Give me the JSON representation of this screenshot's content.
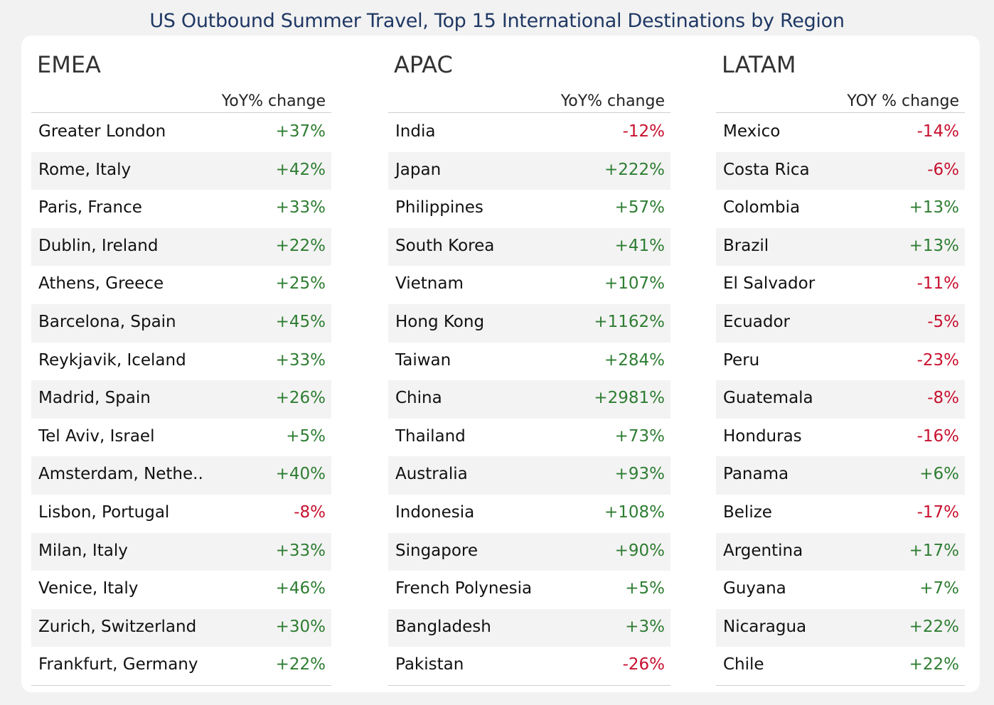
{
  "title": "US Outbound Summer Travel, Top 15 International Destinations by Region",
  "colors": {
    "positive": "#2e7d32",
    "negative": "#c8102e",
    "title": "#1f3864"
  },
  "chart_data": {
    "type": "table",
    "title": "US Outbound Summer Travel, Top 15 International Destinations by Region",
    "tables": [
      {
        "region": "EMEA",
        "column_header": "YoY% change",
        "rows": [
          {
            "name": "Greater London",
            "value": "+37%",
            "change": 37
          },
          {
            "name": "Rome, Italy",
            "value": "+42%",
            "change": 42
          },
          {
            "name": "Paris, France",
            "value": "+33%",
            "change": 33
          },
          {
            "name": "Dublin, Ireland",
            "value": "+22%",
            "change": 22
          },
          {
            "name": "Athens, Greece",
            "value": "+25%",
            "change": 25
          },
          {
            "name": "Barcelona, Spain",
            "value": "+45%",
            "change": 45
          },
          {
            "name": "Reykjavik, Iceland",
            "value": "+33%",
            "change": 33
          },
          {
            "name": "Madrid, Spain",
            "value": "+26%",
            "change": 26
          },
          {
            "name": "Tel Aviv, Israel",
            "value": "+5%",
            "change": 5
          },
          {
            "name": "Amsterdam, Nethe..",
            "value": "+40%",
            "change": 40
          },
          {
            "name": "Lisbon, Portugal",
            "value": "-8%",
            "change": -8
          },
          {
            "name": "Milan, Italy",
            "value": "+33%",
            "change": 33
          },
          {
            "name": "Venice, Italy",
            "value": "+46%",
            "change": 46
          },
          {
            "name": "Zurich, Switzerland",
            "value": "+30%",
            "change": 30
          },
          {
            "name": "Frankfurt, Germany",
            "value": "+22%",
            "change": 22
          }
        ]
      },
      {
        "region": "APAC",
        "column_header": "YoY% change",
        "rows": [
          {
            "name": "India",
            "value": "-12%",
            "change": -12
          },
          {
            "name": "Japan",
            "value": "+222%",
            "change": 222
          },
          {
            "name": "Philippines",
            "value": "+57%",
            "change": 57
          },
          {
            "name": "South Korea",
            "value": "+41%",
            "change": 41
          },
          {
            "name": "Vietnam",
            "value": "+107%",
            "change": 107
          },
          {
            "name": "Hong Kong",
            "value": "+1162%",
            "change": 1162
          },
          {
            "name": "Taiwan",
            "value": "+284%",
            "change": 284
          },
          {
            "name": "China",
            "value": "+2981%",
            "change": 2981
          },
          {
            "name": "Thailand",
            "value": "+73%",
            "change": 73
          },
          {
            "name": "Australia",
            "value": "+93%",
            "change": 93
          },
          {
            "name": "Indonesia",
            "value": "+108%",
            "change": 108
          },
          {
            "name": "Singapore",
            "value": "+90%",
            "change": 90
          },
          {
            "name": "French Polynesia",
            "value": "+5%",
            "change": 5
          },
          {
            "name": "Bangladesh",
            "value": "+3%",
            "change": 3
          },
          {
            "name": "Pakistan",
            "value": "-26%",
            "change": -26
          }
        ]
      },
      {
        "region": "LATAM",
        "column_header": "YOY % change",
        "rows": [
          {
            "name": "Mexico",
            "value": "-14%",
            "change": -14
          },
          {
            "name": "Costa Rica",
            "value": "-6%",
            "change": -6
          },
          {
            "name": "Colombia",
            "value": "+13%",
            "change": 13
          },
          {
            "name": "Brazil",
            "value": "+13%",
            "change": 13
          },
          {
            "name": "El Salvador",
            "value": "-11%",
            "change": -11
          },
          {
            "name": "Ecuador",
            "value": "-5%",
            "change": -5
          },
          {
            "name": "Peru",
            "value": "-23%",
            "change": -23
          },
          {
            "name": "Guatemala",
            "value": "-8%",
            "change": -8
          },
          {
            "name": "Honduras",
            "value": "-16%",
            "change": -16
          },
          {
            "name": "Panama",
            "value": "+6%",
            "change": 6
          },
          {
            "name": "Belize",
            "value": "-17%",
            "change": -17
          },
          {
            "name": "Argentina",
            "value": "+17%",
            "change": 17
          },
          {
            "name": "Guyana",
            "value": "+7%",
            "change": 7
          },
          {
            "name": "Nicaragua",
            "value": "+22%",
            "change": 22
          },
          {
            "name": "Chile",
            "value": "+22%",
            "change": 22
          }
        ]
      }
    ]
  }
}
